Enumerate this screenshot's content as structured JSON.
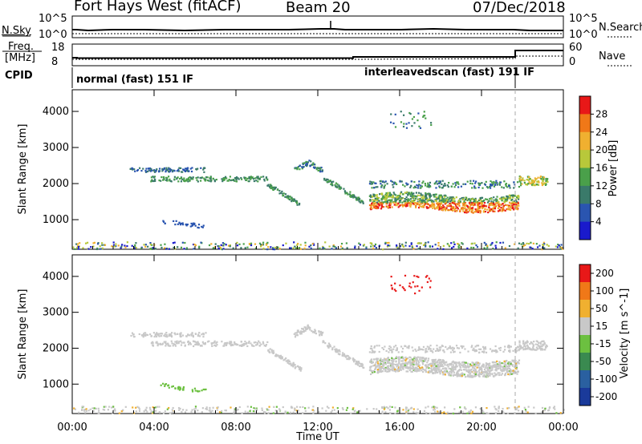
{
  "header": {
    "site": "Fort Hays West (fitACF)",
    "beam": "Beam 20",
    "date": "07/Dec/2018"
  },
  "top_panels": {
    "nsky_label": "N.Sky",
    "nsky_ticks": [
      "10^5",
      "10^0"
    ],
    "nsearch_label": "N.Search",
    "nsearch_ticks": [
      "10^5",
      "10^0"
    ],
    "freq_label": "Freq.",
    "freq_unit": "[MHz]",
    "freq_ticks": [
      "18",
      "8"
    ],
    "nave_label": "Nave",
    "nave_ticks": [
      "60",
      "0"
    ],
    "cpid_label": "CPID",
    "cpid_mode_1": "normal (fast) 151 IF",
    "cpid_mode_2": "interleavedscan (fast) 191 IF"
  },
  "chart_data": [
    {
      "type": "heatmap",
      "panel": "power",
      "ylabel": "Slant Range [km]",
      "y_ticks": [
        1000,
        2000,
        3000,
        4000
      ],
      "ylim": [
        180,
        4600
      ],
      "x_ticks": [
        "00:00",
        "04:00",
        "08:00",
        "12:00",
        "16:00",
        "20:00",
        "00:00"
      ],
      "colorbar": {
        "label": "Power [dB]",
        "ticks": [
          4,
          8,
          12,
          16,
          20,
          24,
          28
        ],
        "colors": [
          "#1a1acc",
          "#2a55b0",
          "#3a7a6a",
          "#4aa04a",
          "#b8c83a",
          "#f0b030",
          "#f07818",
          "#e81818"
        ]
      }
    },
    {
      "type": "heatmap",
      "panel": "velocity",
      "ylabel": "Slant Range [km]",
      "y_ticks": [
        1000,
        2000,
        3000,
        4000
      ],
      "ylim": [
        180,
        4600
      ],
      "x_ticks": [
        "00:00",
        "04:00",
        "08:00",
        "12:00",
        "16:00",
        "20:00",
        "00:00"
      ],
      "xlabel": "Time UT",
      "colorbar": {
        "label": "Velocity [m s^-1]",
        "ticks": [
          "200",
          "100",
          "50",
          "15",
          "-15",
          "-50",
          "-100",
          "-200"
        ],
        "colors": [
          "#1a3a9a",
          "#2a60a0",
          "#3a8a50",
          "#6cc040",
          "#c8c8c8",
          "#f0b030",
          "#f07818",
          "#e81818"
        ]
      }
    }
  ]
}
